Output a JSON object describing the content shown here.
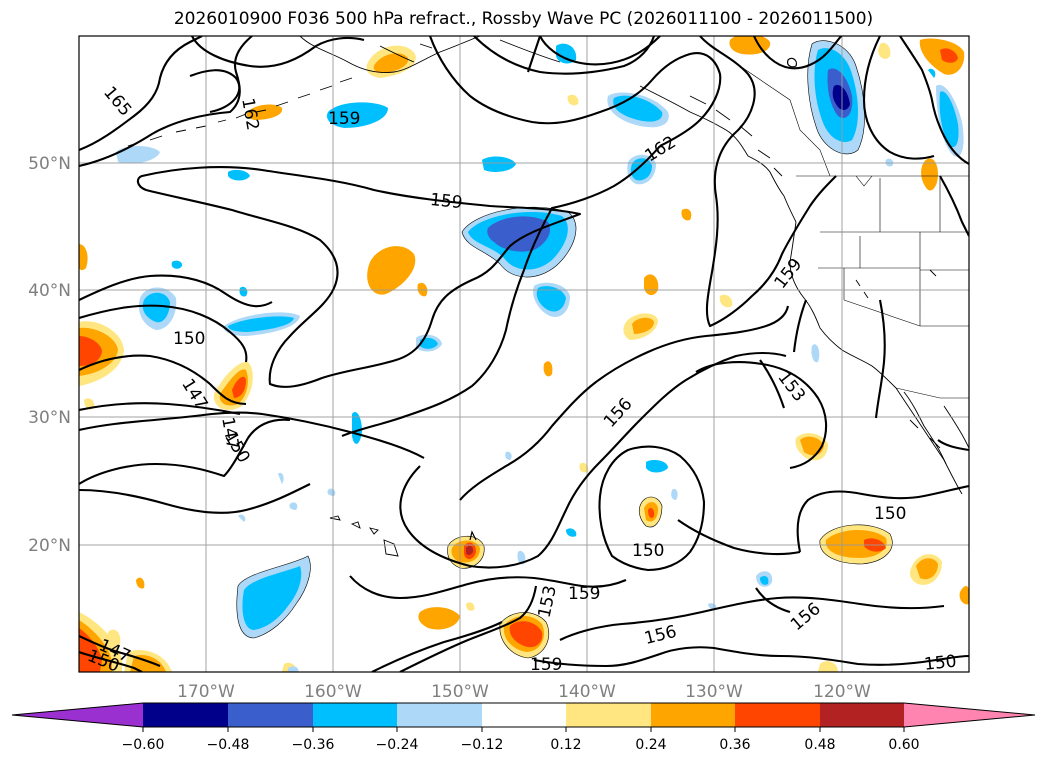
{
  "title": "2026010900 F036 500 hPa refract., Rossby Wave PC (2026011100 - 2026011500)",
  "lat_labels": [
    "50°N",
    "40°N",
    "30°N",
    "20°N"
  ],
  "lon_labels": [
    "170°W",
    "160°W",
    "150°W",
    "140°W",
    "130°W",
    "120°W"
  ],
  "contour_labels": [
    "165",
    "162",
    "159",
    "159",
    "162",
    "159",
    "150",
    "147",
    "147",
    "150",
    "156",
    "153",
    "150",
    "150",
    "159",
    "153",
    "156",
    "159",
    "156",
    "147",
    "150",
    "150"
  ],
  "colorbar": {
    "ticks": [
      "−0.60",
      "−0.48",
      "−0.36",
      "−0.24",
      "−0.12",
      "0.12",
      "0.24",
      "0.36",
      "0.48",
      "0.60"
    ],
    "colors": [
      "#9b30d0",
      "#00008b",
      "#3a5fcd",
      "#00bfff",
      "#add8f7",
      "#ffffff",
      "#ffe680",
      "#ffa500",
      "#ff4500",
      "#b22222",
      "#ff85b0"
    ]
  },
  "colors": {
    "neg_light": "#add8f7",
    "neg_mid": "#00bfff",
    "neg_strong": "#3a5fcd",
    "neg_darkest": "#00008b",
    "pos_light": "#ffe680",
    "pos_mid": "#ffa500",
    "pos_strong": "#ff4500",
    "pos_darkest": "#b22222",
    "grid": "#9a9a9a"
  }
}
